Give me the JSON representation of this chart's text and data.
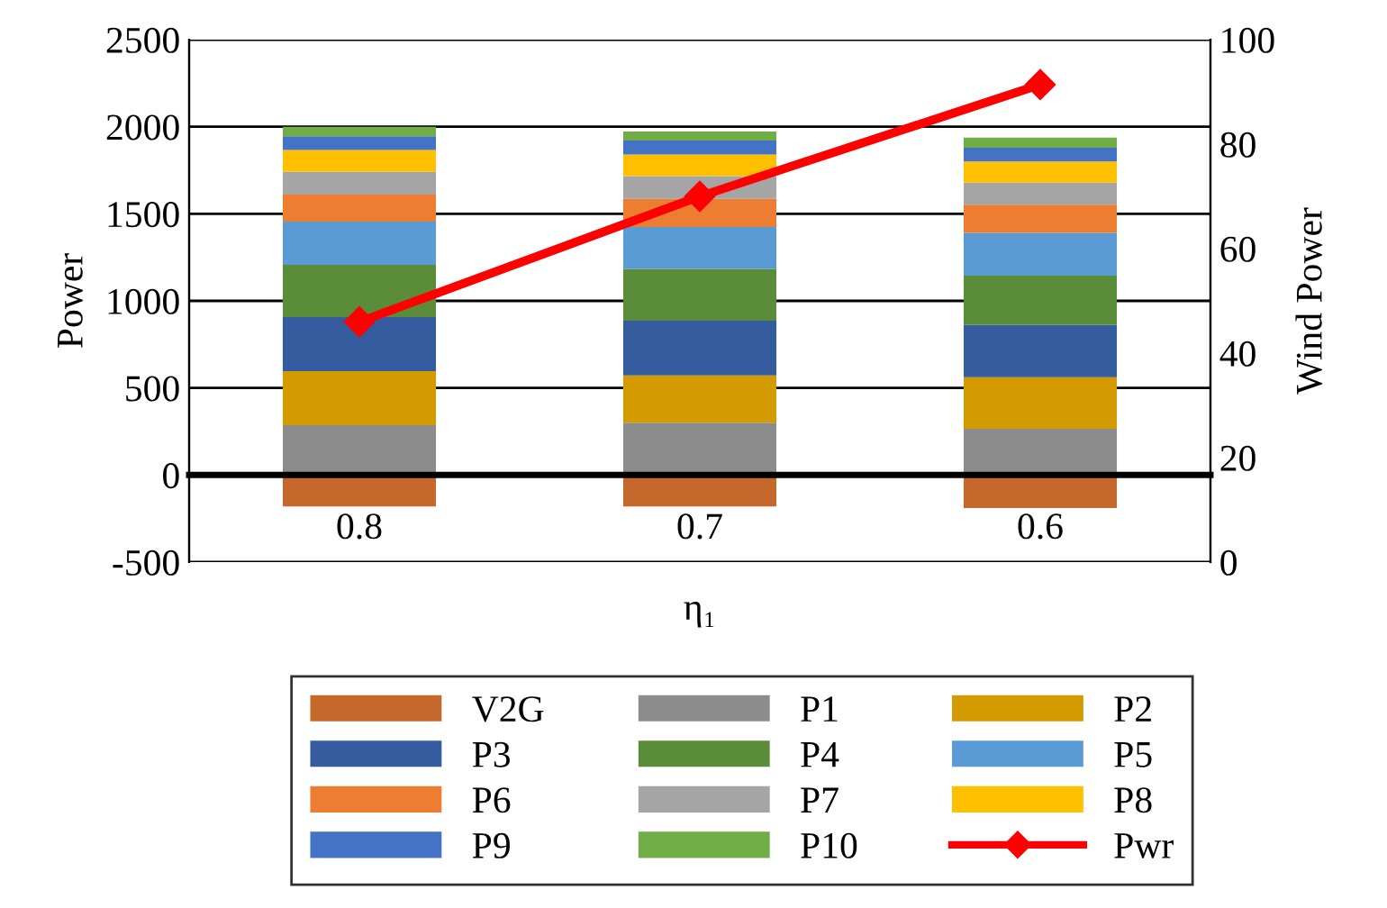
{
  "chart_data": {
    "type": "bar",
    "stacked": true,
    "xlabel": "η₁",
    "ylabel": "Power",
    "y2label": "Wind Power",
    "categories": [
      "0.8",
      "0.7",
      "0.6"
    ],
    "series": [
      {
        "name": "V2G",
        "color": "#c5682b",
        "values": [
          -180,
          -180,
          -190
        ]
      },
      {
        "name": "P1",
        "color": "#8c8c8c",
        "values": [
          286,
          300,
          266
        ]
      },
      {
        "name": "P2",
        "color": "#d39b00",
        "values": [
          311,
          272,
          296
        ]
      },
      {
        "name": "P3",
        "color": "#345c9e",
        "values": [
          310,
          314,
          300
        ]
      },
      {
        "name": "P4",
        "color": "#5a8c3a",
        "values": [
          300,
          297,
          283
        ]
      },
      {
        "name": "P5",
        "color": "#5b9bd5",
        "values": [
          248,
          241,
          245
        ]
      },
      {
        "name": "P6",
        "color": "#ed7d31",
        "values": [
          155,
          162,
          162
        ]
      },
      {
        "name": "P7",
        "color": "#a5a5a5",
        "values": [
          131,
          131,
          127
        ]
      },
      {
        "name": "P8",
        "color": "#ffc000",
        "values": [
          125,
          124,
          121
        ]
      },
      {
        "name": "P9",
        "color": "#4472c4",
        "values": [
          79,
          80,
          79
        ]
      },
      {
        "name": "P10",
        "color": "#70ad47",
        "values": [
          55,
          51,
          59
        ]
      },
      {
        "name": "Pwr",
        "color": "#ff0000",
        "type": "line",
        "axis": "y2",
        "marker": "diamond",
        "values": [
          46,
          70,
          91.4
        ]
      }
    ],
    "ylim": [
      -500,
      2500
    ],
    "yticks": [
      -500,
      0,
      500,
      1000,
      1500,
      2000,
      2500
    ],
    "y2lim": [
      0,
      100
    ],
    "y2ticks": [
      0,
      20,
      40,
      60,
      80,
      100
    ],
    "grid": "y",
    "legend": "bottom"
  }
}
